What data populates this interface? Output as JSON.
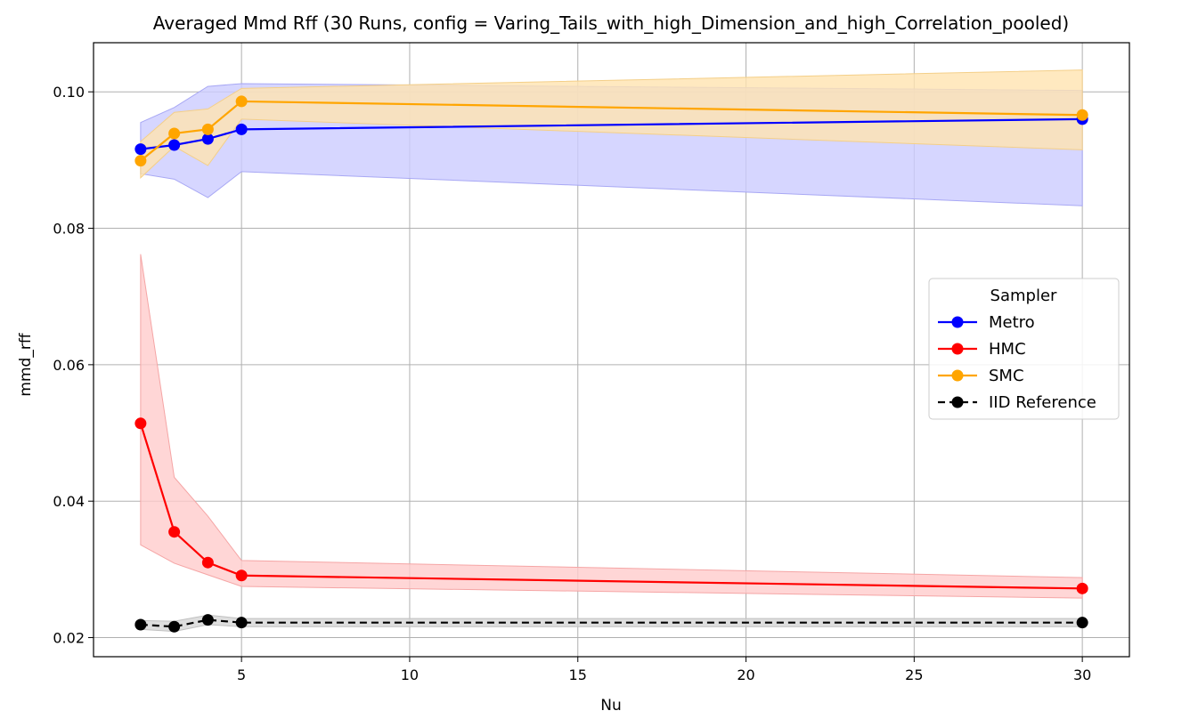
{
  "chart_data": {
    "type": "line",
    "title": "Averaged Mmd Rff (30 Runs, config = Varing_Tails_with_high_Dimension_and_high_Correlation_pooled)",
    "xlabel": "Nu",
    "ylabel": "mmd_rff",
    "xlim": [
      0.6,
      31.4
    ],
    "ylim": [
      0.0172,
      0.1072
    ],
    "xticks": [
      5,
      10,
      15,
      20,
      25,
      30
    ],
    "yticks": [
      0.02,
      0.04,
      0.06,
      0.08,
      0.1
    ],
    "ytick_labels": [
      "0.02",
      "0.04",
      "0.06",
      "0.08",
      "0.10"
    ],
    "grid": true,
    "x": [
      2,
      3,
      4,
      5,
      30
    ],
    "series": [
      {
        "name": "Metro",
        "color": "#0000ff",
        "band_color": "#ccccff",
        "band_edge": "#a8a8f4",
        "linestyle": "solid",
        "values": [
          0.0916,
          0.0922,
          0.0931,
          0.0945,
          0.096
        ],
        "lower": [
          0.088,
          0.0872,
          0.0845,
          0.0883,
          0.0833
        ],
        "upper": [
          0.0955,
          0.0977,
          0.1008,
          0.1012,
          0.1002
        ]
      },
      {
        "name": "HMC",
        "color": "#ff0000",
        "band_color": "#ffcccc",
        "band_edge": "#f5a5a5",
        "linestyle": "solid",
        "values": [
          0.0514,
          0.0355,
          0.031,
          0.0291,
          0.0272
        ],
        "lower": [
          0.0336,
          0.0309,
          0.0292,
          0.0275,
          0.0258
        ],
        "upper": [
          0.0762,
          0.0435,
          0.0378,
          0.0313,
          0.0288
        ]
      },
      {
        "name": "SMC",
        "color": "#ffa500",
        "band_color": "#ffe3b0",
        "band_edge": "#f4cf88",
        "linestyle": "solid",
        "values": [
          0.0899,
          0.0939,
          0.0945,
          0.0986,
          0.0966
        ],
        "lower": [
          0.0874,
          0.092,
          0.0892,
          0.096,
          0.0915
        ],
        "upper": [
          0.0927,
          0.097,
          0.0975,
          0.1005,
          0.1032
        ]
      },
      {
        "name": "IID Reference",
        "color": "#000000",
        "band_color": "#d6d6d6",
        "band_edge": "#c0c0c0",
        "linestyle": "dashed",
        "values": [
          0.0219,
          0.0216,
          0.0226,
          0.0222,
          0.0222
        ],
        "lower": [
          0.0212,
          0.0209,
          0.0219,
          0.0216,
          0.0216
        ],
        "upper": [
          0.0225,
          0.0224,
          0.0233,
          0.0228,
          0.0228
        ]
      }
    ],
    "legend": {
      "title": "Sampler",
      "placement": "center-right"
    }
  }
}
